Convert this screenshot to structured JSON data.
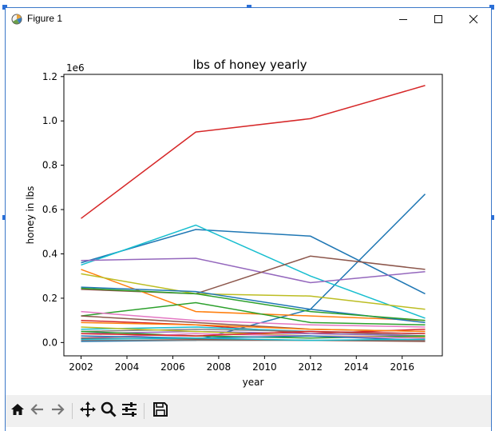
{
  "window": {
    "title": "Figure 1",
    "minimize_icon": "minimize-icon",
    "maximize_icon": "maximize-icon",
    "close_icon": "close-icon"
  },
  "toolbar": {
    "icons": [
      "home-icon",
      "back-arrow-icon",
      "forward-arrow-icon",
      "pan-icon",
      "zoom-icon",
      "configure-subplots-icon",
      "save-icon"
    ]
  },
  "chart_data": {
    "type": "line",
    "title": "lbs of honey yearly",
    "xlabel": "year",
    "ylabel": "honey in lbs",
    "offset_label": "1e6",
    "xlim": [
      2001.25,
      2017.75
    ],
    "ylim": [
      -0.06,
      1.21
    ],
    "x_ticks": [
      "2002",
      "2004",
      "2006",
      "2008",
      "2010",
      "2012",
      "2014",
      "2016"
    ],
    "y_ticks": [
      "0.0",
      "0.2",
      "0.4",
      "0.6",
      "0.8",
      "1.0",
      "1.2"
    ],
    "grid": false,
    "x": [
      2002,
      2007,
      2012,
      2017
    ],
    "series": [
      {
        "color": "#d62728",
        "values": [
          0.56,
          0.95,
          1.01,
          1.16
        ]
      },
      {
        "color": "#1f77b4",
        "values": [
          0.005,
          0.01,
          0.15,
          0.67
        ]
      },
      {
        "color": "#1f77b4",
        "values": [
          0.36,
          0.51,
          0.48,
          0.22
        ]
      },
      {
        "color": "#17becf",
        "values": [
          0.35,
          0.53,
          0.3,
          0.11
        ]
      },
      {
        "color": "#9467bd",
        "values": [
          0.37,
          0.38,
          0.27,
          0.32
        ]
      },
      {
        "color": "#8c564b",
        "values": [
          0.24,
          0.22,
          0.39,
          0.33
        ]
      },
      {
        "color": "#ff7f0e",
        "values": [
          0.33,
          0.14,
          0.12,
          0.1
        ]
      },
      {
        "color": "#bcbd22",
        "values": [
          0.31,
          0.22,
          0.21,
          0.15
        ]
      },
      {
        "color": "#1f77b4",
        "values": [
          0.25,
          0.23,
          0.15,
          0.09
        ]
      },
      {
        "color": "#2ca02c",
        "values": [
          0.245,
          0.22,
          0.14,
          0.1
        ]
      },
      {
        "color": "#2ca02c",
        "values": [
          0.12,
          0.18,
          0.09,
          0.08
        ]
      },
      {
        "color": "#8c564b",
        "values": [
          0.12,
          0.09,
          0.06,
          0.05
        ]
      },
      {
        "color": "#e377c2",
        "values": [
          0.14,
          0.1,
          0.08,
          0.07
        ]
      },
      {
        "color": "#d62728",
        "values": [
          0.1,
          0.08,
          0.04,
          0.06
        ]
      },
      {
        "color": "#17becf",
        "values": [
          0.06,
          0.07,
          0.05,
          0.04
        ]
      },
      {
        "color": "#7f7f7f",
        "values": [
          0.05,
          0.06,
          0.05,
          0.03
        ]
      },
      {
        "color": "#ff7f0e",
        "values": [
          0.09,
          0.08,
          0.06,
          0.05
        ]
      },
      {
        "color": "#9467bd",
        "values": [
          0.04,
          0.05,
          0.04,
          0.03
        ]
      },
      {
        "color": "#bcbd22",
        "values": [
          0.07,
          0.05,
          0.03,
          0.025
        ]
      },
      {
        "color": "#2ca02c",
        "values": [
          0.05,
          0.03,
          0.02,
          0.03
        ]
      },
      {
        "color": "#e377c2",
        "values": [
          0.02,
          0.04,
          0.03,
          0.02
        ]
      },
      {
        "color": "#1f77b4",
        "values": [
          0.03,
          0.02,
          0.03,
          0.01
        ]
      },
      {
        "color": "#7f7f7f",
        "values": [
          0.01,
          0.01,
          0.01,
          0.01
        ]
      },
      {
        "color": "#8c564b",
        "values": [
          0.02,
          0.015,
          0.01,
          0.005
        ]
      },
      {
        "color": "#d62728",
        "values": [
          0.04,
          0.03,
          0.05,
          0.04
        ]
      },
      {
        "color": "#17becf",
        "values": [
          0.015,
          0.02,
          0.01,
          0.015
        ]
      }
    ]
  }
}
